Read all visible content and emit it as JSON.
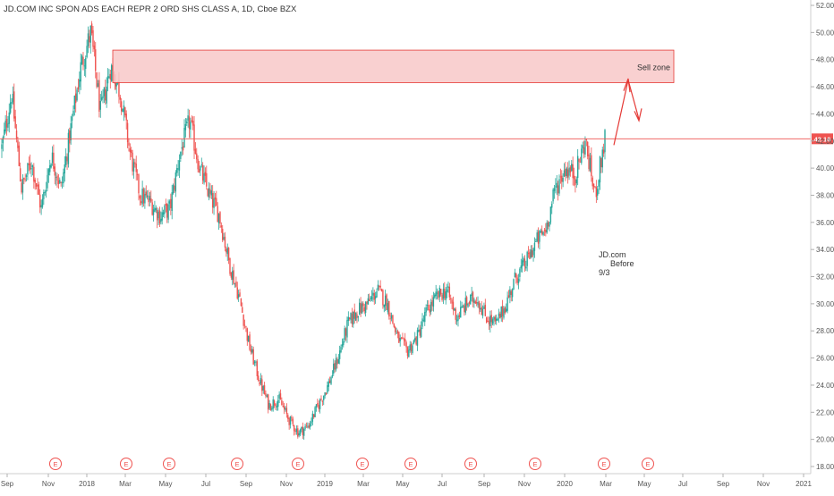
{
  "header": {
    "title": "JD.COM INC SPON ADS EACH REPR 2 ORD SHS CLASS A, 1D, Cboe BZX"
  },
  "colors": {
    "up": "#26a69a",
    "down": "#ef5350",
    "zone_fill": "#f8c8c8",
    "zone_stroke": "#e53935",
    "price_line": "#ef5350",
    "axis_text": "#555555",
    "earnings": "#ef5350"
  },
  "chart_data": {
    "type": "candlestick",
    "x_axis": {
      "ticks": [
        "Sep",
        "Nov",
        "2018",
        "Mar",
        "May",
        "Jul",
        "Sep",
        "Nov",
        "2019",
        "Mar",
        "May",
        "Jul",
        "Sep",
        "Nov",
        "2020",
        "Mar",
        "May",
        "Jul",
        "Sep",
        "Nov",
        "2021"
      ]
    },
    "y_axis": {
      "ticks": [
        "52.00",
        "50.00",
        "48.00",
        "46.00",
        "44.00",
        "42.00",
        "40.00",
        "38.00",
        "36.00",
        "34.00",
        "32.00",
        "30.00",
        "28.00",
        "26.00",
        "24.00",
        "22.00",
        "20.00",
        "18.00"
      ],
      "range": [
        17.5,
        52.5
      ]
    },
    "last_price": {
      "label": "42.16",
      "value": 42.16
    },
    "series": [
      {
        "date_label": "Sep",
        "close": 41.5
      },
      {
        "date_label": "Oct",
        "close": 45.5
      },
      {
        "date_label": "Oct",
        "close": 38.5
      },
      {
        "date_label": "Nov",
        "close": 40.5
      },
      {
        "date_label": "Nov",
        "close": 37.0
      },
      {
        "date_label": "Dec",
        "close": 41.0
      },
      {
        "date_label": "Dec",
        "close": 38.5
      },
      {
        "date_label": "2018",
        "close": 43.0
      },
      {
        "date_label": "Jan",
        "close": 47.5
      },
      {
        "date_label": "Jan",
        "close": 50.0
      },
      {
        "date_label": "Feb",
        "close": 44.0
      },
      {
        "date_label": "Feb",
        "close": 47.5
      },
      {
        "date_label": "Mar",
        "close": 45.5
      },
      {
        "date_label": "Mar",
        "close": 41.0
      },
      {
        "date_label": "Apr",
        "close": 38.0
      },
      {
        "date_label": "Apr",
        "close": 37.5
      },
      {
        "date_label": "May",
        "close": 36.5
      },
      {
        "date_label": "May",
        "close": 37.0
      },
      {
        "date_label": "Jun",
        "close": 41.0
      },
      {
        "date_label": "Jun",
        "close": 43.5
      },
      {
        "date_label": "Jul",
        "close": 40.0
      },
      {
        "date_label": "Jul",
        "close": 38.0
      },
      {
        "date_label": "Aug",
        "close": 36.5
      },
      {
        "date_label": "Aug",
        "close": 33.0
      },
      {
        "date_label": "Sep",
        "close": 30.5
      },
      {
        "date_label": "Sep",
        "close": 27.0
      },
      {
        "date_label": "Oct",
        "close": 24.5
      },
      {
        "date_label": "Oct",
        "close": 22.5
      },
      {
        "date_label": "Nov",
        "close": 23.0
      },
      {
        "date_label": "Nov",
        "close": 21.5
      },
      {
        "date_label": "Dec",
        "close": 20.5
      },
      {
        "date_label": "Dec",
        "close": 21.0
      },
      {
        "date_label": "2019",
        "close": 22.5
      },
      {
        "date_label": "Jan",
        "close": 24.0
      },
      {
        "date_label": "Feb",
        "close": 26.0
      },
      {
        "date_label": "Feb",
        "close": 28.5
      },
      {
        "date_label": "Mar",
        "close": 29.5
      },
      {
        "date_label": "Mar",
        "close": 30.0
      },
      {
        "date_label": "Apr",
        "close": 31.0
      },
      {
        "date_label": "Apr",
        "close": 30.0
      },
      {
        "date_label": "May",
        "close": 27.5
      },
      {
        "date_label": "May",
        "close": 26.5
      },
      {
        "date_label": "Jun",
        "close": 27.5
      },
      {
        "date_label": "Jun",
        "close": 29.5
      },
      {
        "date_label": "Jul",
        "close": 30.5
      },
      {
        "date_label": "Jul",
        "close": 31.0
      },
      {
        "date_label": "Aug",
        "close": 29.0
      },
      {
        "date_label": "Aug",
        "close": 30.0
      },
      {
        "date_label": "Sep",
        "close": 30.5
      },
      {
        "date_label": "Sep",
        "close": 29.0
      },
      {
        "date_label": "Oct",
        "close": 28.5
      },
      {
        "date_label": "Oct",
        "close": 30.0
      },
      {
        "date_label": "Nov",
        "close": 32.0
      },
      {
        "date_label": "Nov",
        "close": 33.0
      },
      {
        "date_label": "Dec",
        "close": 34.5
      },
      {
        "date_label": "Dec",
        "close": 35.5
      },
      {
        "date_label": "2020",
        "close": 38.5
      },
      {
        "date_label": "Jan",
        "close": 40.0
      },
      {
        "date_label": "Feb",
        "close": 39.5
      },
      {
        "date_label": "Feb",
        "close": 42.0
      },
      {
        "date_label": "Mar",
        "close": 38.0
      },
      {
        "date_label": "Mar",
        "close": 42.16
      }
    ],
    "annotations": [
      {
        "label": "Sell zone",
        "price_low": 46.3,
        "price_high": 48.7
      },
      {
        "label": "JD.com Before 9/3"
      }
    ],
    "earnings_markers": [
      "E",
      "E",
      "E",
      "E",
      "E",
      "E",
      "E",
      "E",
      "E",
      "E",
      "E"
    ],
    "grid": false
  },
  "annotations_text": {
    "sell_zone": "Sell zone",
    "note_line1": "JD.com",
    "note_line2": "Before",
    "note_line3": "9/3"
  }
}
